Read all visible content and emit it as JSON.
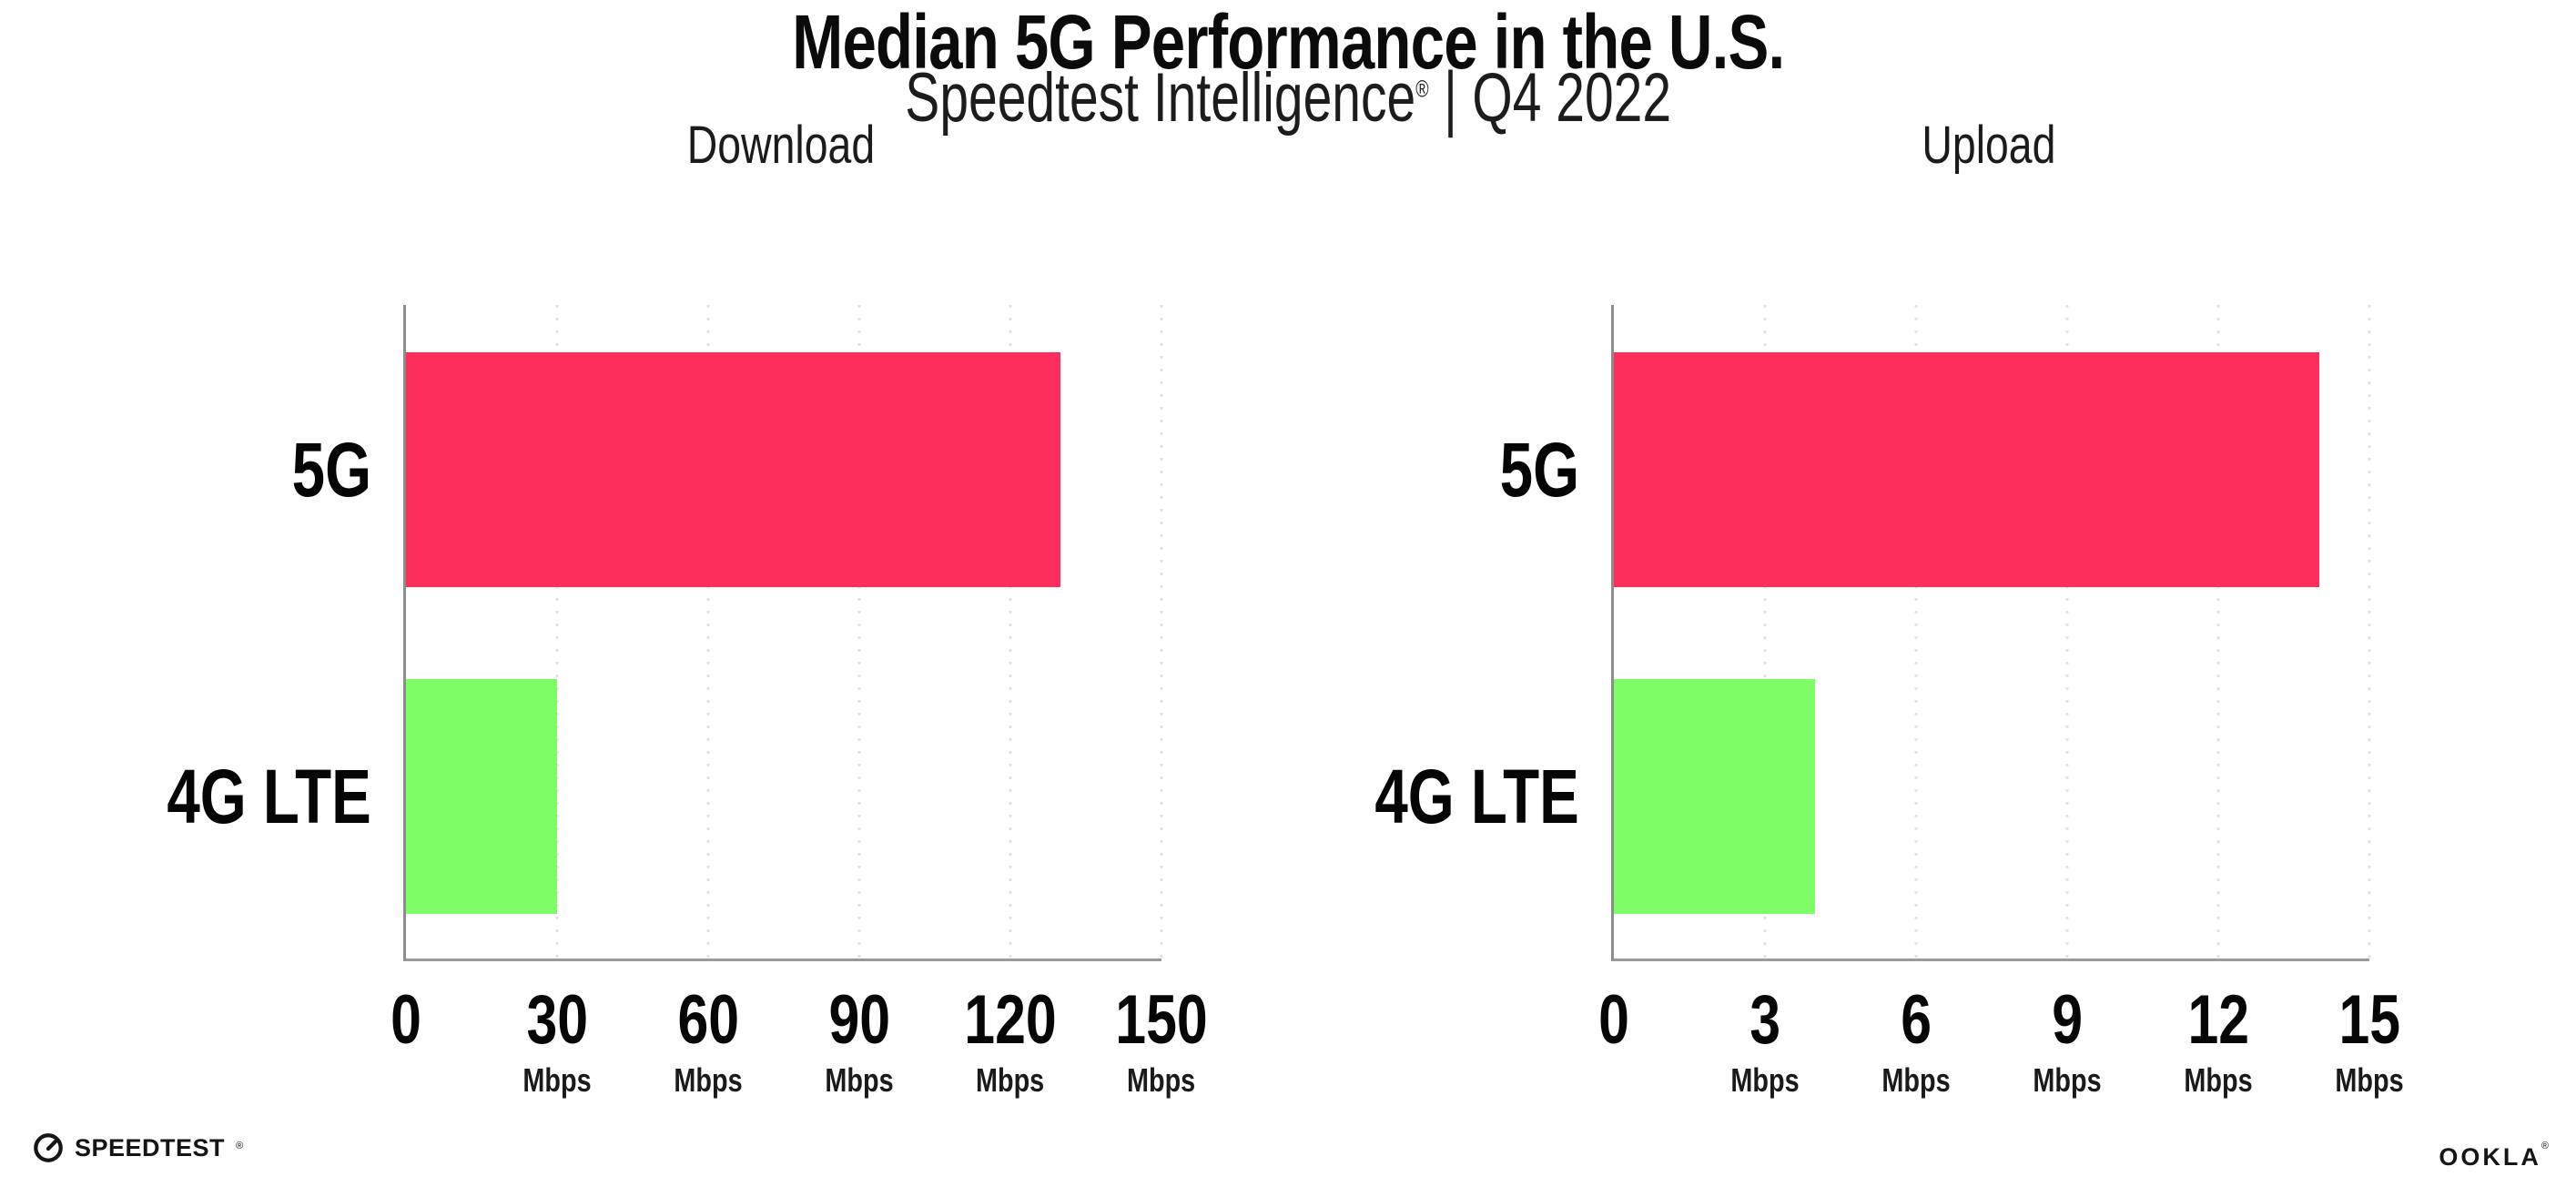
{
  "header": {
    "title": "Median 5G Performance in the U.S.",
    "subtitle_brand": "Speedtest Intelligence",
    "subtitle_reg": "®",
    "subtitle_sep": "|",
    "subtitle_period": "Q4 2022"
  },
  "chart_data": [
    {
      "type": "bar",
      "orientation": "horizontal",
      "title": "Download",
      "categories": [
        "5G",
        "4G LTE"
      ],
      "values": [
        130,
        30
      ],
      "unit": "Mbps",
      "xlim": [
        0,
        150
      ],
      "axis_ticks": [
        0,
        30,
        60,
        90,
        120,
        150
      ],
      "grid": "vertical-dotted",
      "legend": "none",
      "bar_colors": [
        "#FF2D5C",
        "#7FFD66"
      ]
    },
    {
      "type": "bar",
      "orientation": "horizontal",
      "title": "Upload",
      "categories": [
        "5G",
        "4G LTE"
      ],
      "values": [
        14,
        4
      ],
      "unit": "Mbps",
      "xlim": [
        0,
        15
      ],
      "axis_ticks": [
        0,
        3,
        6,
        9,
        12,
        15
      ],
      "grid": "vertical-dotted",
      "legend": "none",
      "bar_colors": [
        "#FF2D5C",
        "#7FFD66"
      ]
    }
  ],
  "colors": {
    "bar_5g": "#FF2D5C",
    "bar_4g_lte": "#7FFD66",
    "axis": "#8C8C8C",
    "gridline_dot": "#E0E1EC",
    "text": "#0B0B0B"
  },
  "footer": {
    "speedtest": {
      "label": "SPEEDTEST",
      "mark": "®"
    },
    "ookla": {
      "label": "OOKLA",
      "mark": "®"
    }
  }
}
